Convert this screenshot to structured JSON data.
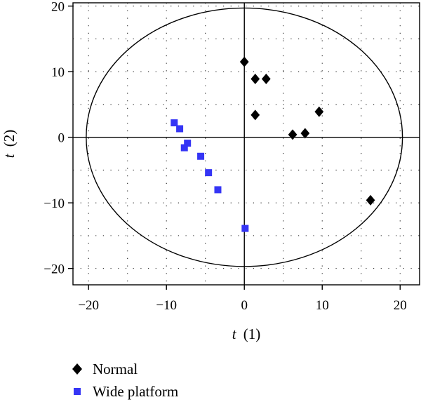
{
  "chart_data": {
    "type": "scatter",
    "title": "",
    "xlabel_var": "t",
    "xlabel_idx": "(1)",
    "ylabel_var": "t",
    "ylabel_idx": "(2)",
    "xlim": [
      -22,
      22.5
    ],
    "ylim": [
      -22.5,
      20.5
    ],
    "xticks": [
      -20,
      -10,
      0,
      10,
      20
    ],
    "yticks": [
      -20,
      -10,
      0,
      10,
      20
    ],
    "xtick_labels": [
      "−20",
      "−10",
      "0",
      "10",
      "20"
    ],
    "ytick_labels": [
      "−20",
      "−10",
      "0",
      "10",
      "20"
    ],
    "grid": true,
    "ellipse": {
      "center": [
        0,
        0
      ],
      "rx": 20.3,
      "ry": 19.7
    },
    "legend_position": "bottom-left",
    "series": [
      {
        "name": "Normal",
        "marker": "diamond",
        "color": "#000000",
        "points": [
          [
            0,
            11.5
          ],
          [
            1.4,
            8.9
          ],
          [
            2.8,
            8.9
          ],
          [
            1.4,
            3.4
          ],
          [
            6.2,
            0.4
          ],
          [
            7.8,
            0.6
          ],
          [
            9.6,
            3.9
          ],
          [
            16.2,
            -9.6
          ]
        ]
      },
      {
        "name": "Wide platform",
        "marker": "square",
        "color": "#3535f5",
        "points": [
          [
            -9.0,
            2.2
          ],
          [
            -8.3,
            1.3
          ],
          [
            -7.3,
            -0.9
          ],
          [
            -7.7,
            -1.6
          ],
          [
            -5.6,
            -2.9
          ],
          [
            -4.6,
            -5.4
          ],
          [
            -3.4,
            -8.0
          ],
          [
            0.1,
            -13.9
          ]
        ]
      }
    ]
  }
}
